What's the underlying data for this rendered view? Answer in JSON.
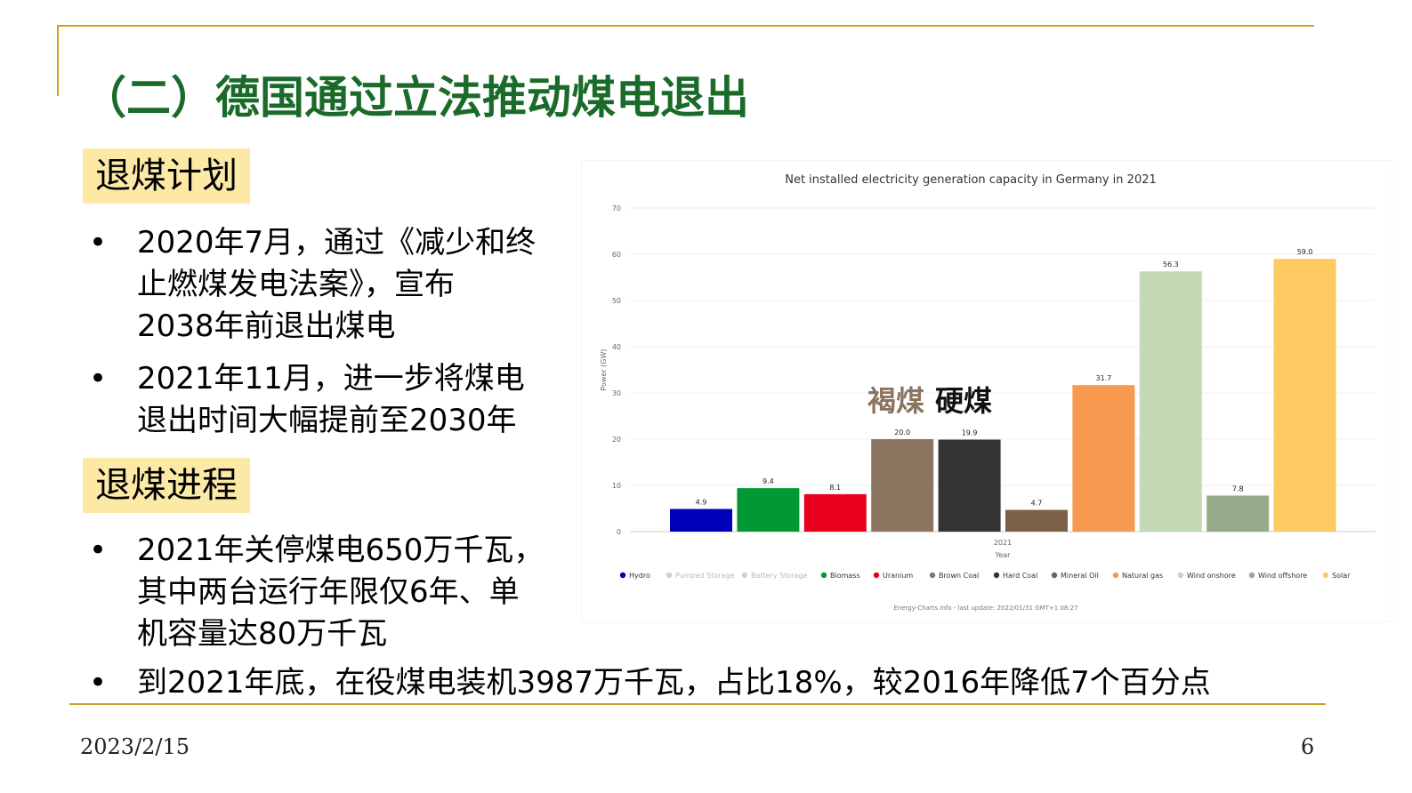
{
  "slide": {
    "title": "（二）德国通过立法推动煤电退出",
    "sections": {
      "plan": "退煤计划",
      "progress": "退煤进程"
    },
    "bullets": [
      "2020年7月，通过《减少和终\n止燃煤发电法案》，宣布\n2038年前退出煤电",
      "2021年11月，进一步将煤电\n退出时间大幅提前至2030年",
      "2021年关停煤电650万千瓦，\n其中两台运行年限仅6年、单\n机容量达80万千瓦",
      "到2021年底，在役煤电装机3987万千瓦，占比18%，较2016年降低7个百分点"
    ],
    "bullet_marker": "•",
    "date": "2023/2/15",
    "page_number": "6"
  },
  "chart_data": {
    "type": "bar",
    "title": "Net installed electricity generation capacity in Germany in 2021",
    "xlabel": "Year",
    "ylabel": "Power (GW)",
    "x_tick": "2021",
    "ylim": [
      0,
      70
    ],
    "yticks": [
      0,
      10,
      20,
      30,
      40,
      50,
      60,
      70
    ],
    "grid": true,
    "legend_position": "bottom",
    "series": [
      {
        "name": "Hydro",
        "value": 4.9,
        "label": "4.9",
        "color": "#0000b8",
        "dimmed": false
      },
      {
        "name": "Pumped Storage",
        "value": null,
        "label": "",
        "color": "#c8c8c8",
        "dimmed": true
      },
      {
        "name": "Battery Storage",
        "value": null,
        "label": "",
        "color": "#c8c8c8",
        "dimmed": true
      },
      {
        "name": "Biomass",
        "value": 9.4,
        "label": "9.4",
        "color": "#009933",
        "dimmed": false
      },
      {
        "name": "Uranium",
        "value": 8.1,
        "label": "8.1",
        "color": "#e8001c",
        "dimmed": false
      },
      {
        "name": "Brown Coal",
        "value": 20.0,
        "label": "20.0",
        "color": "#8c7560",
        "dimmed": false
      },
      {
        "name": "Hard Coal",
        "value": 19.9,
        "label": "19.9",
        "color": "#333333",
        "dimmed": false
      },
      {
        "name": "Mineral Oil",
        "value": 4.7,
        "label": "4.7",
        "color": "#7a6147",
        "dimmed": false
      },
      {
        "name": "Natural gas",
        "value": 31.7,
        "label": "31.7",
        "color": "#f7994e",
        "dimmed": false
      },
      {
        "name": "Wind onshore",
        "value": 56.3,
        "label": "56.3",
        "color": "#c4d9b5",
        "dimmed": false
      },
      {
        "name": "Wind offshore",
        "value": 7.8,
        "label": "7.8",
        "color": "#97ab8a",
        "dimmed": false
      },
      {
        "name": "Solar",
        "value": 59.0,
        "label": "59.0",
        "color": "#fdcb62",
        "dimmed": false
      }
    ],
    "annotations": [
      {
        "text": "褐煤",
        "color": "#8c7560"
      },
      {
        "text": "硬煤",
        "color": "#111111"
      }
    ],
    "source": "Energy-Charts.info - last update: 2022/01/31 GMT+1 08:27"
  }
}
